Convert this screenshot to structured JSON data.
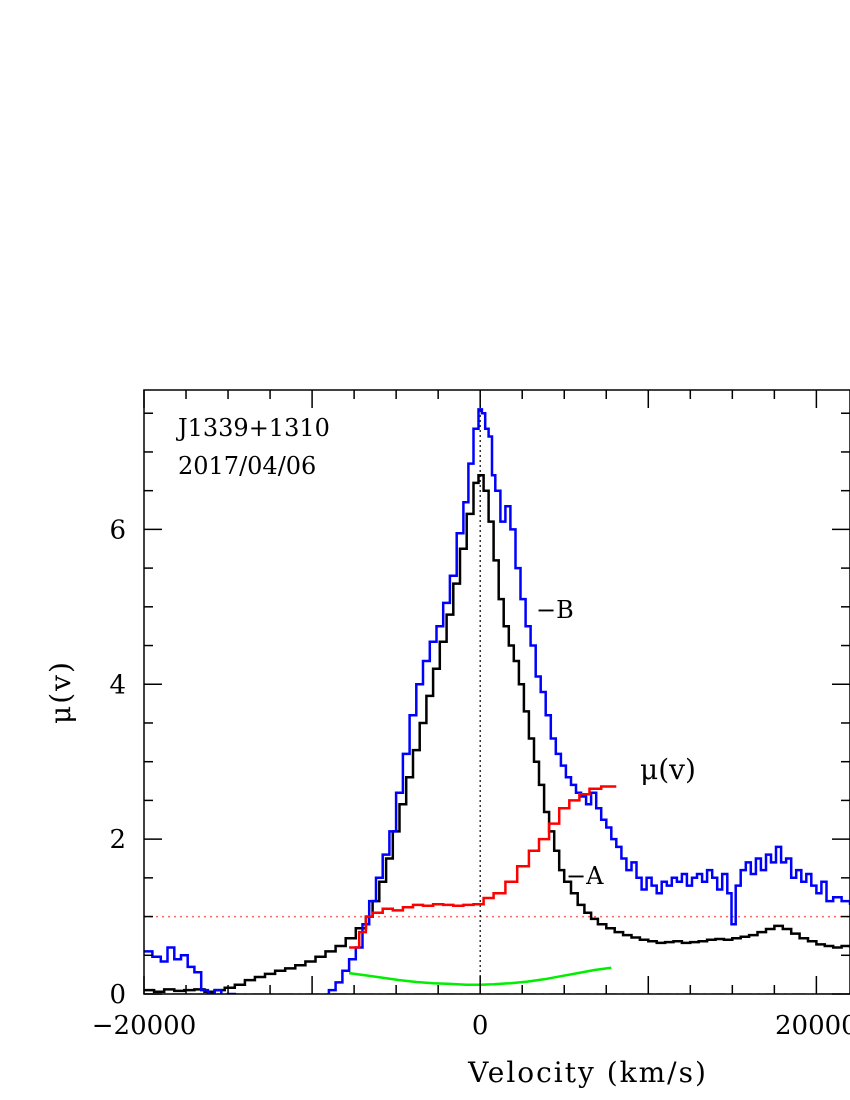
{
  "chart_data": {
    "type": "line",
    "xlabel": "Velocity (km/s)",
    "ylabel": "μ(v)",
    "xlim": [
      -20000,
      22000
    ],
    "ylim": [
      0,
      7.8
    ],
    "x_ticks": [
      -20000,
      0,
      20000
    ],
    "x_tick_labels": [
      "−20000",
      "0",
      "20000"
    ],
    "y_ticks": [
      0,
      2,
      4,
      6
    ],
    "y_tick_labels": [
      "0",
      "2",
      "4",
      "6"
    ],
    "grid": false,
    "annotations": {
      "object": "J1339+1310",
      "date": "2017/04/06",
      "label_B": "−B",
      "label_A": "−A",
      "label_mu": "μ(v)"
    },
    "colors": {
      "B": "#0000ff",
      "A": "#000000",
      "mu": "#ff0000",
      "green": "#00ee00",
      "ref_line": "#ff6666"
    },
    "reference_lines": {
      "y_one": 1,
      "y_zero": 0,
      "x_zero": 0
    },
    "series": [
      {
        "key": "B",
        "step": true,
        "points": [
          [
            -20000,
            0.55
          ],
          [
            -19500,
            0.48
          ],
          [
            -19000,
            0.42
          ],
          [
            -18600,
            0.6
          ],
          [
            -18200,
            0.45
          ],
          [
            -17800,
            0.5
          ],
          [
            -17400,
            0.35
          ],
          [
            -17000,
            0.28
          ],
          [
            -16600,
            0.05
          ],
          [
            -16200,
            0.0
          ],
          [
            -15800,
            0.05
          ],
          [
            -15400,
            -0.05
          ],
          [
            -15000,
            0.0
          ],
          [
            -14600,
            -0.1
          ],
          [
            -9200,
            -0.1
          ],
          [
            -9000,
            0.05
          ],
          [
            -8600,
            0.15
          ],
          [
            -8200,
            0.3
          ],
          [
            -7800,
            0.45
          ],
          [
            -7400,
            0.6
          ],
          [
            -7000,
            0.9
          ],
          [
            -6600,
            1.2
          ],
          [
            -6200,
            1.5
          ],
          [
            -5800,
            1.8
          ],
          [
            -5400,
            2.1
          ],
          [
            -5000,
            2.6
          ],
          [
            -4600,
            3.1
          ],
          [
            -4200,
            3.6
          ],
          [
            -3800,
            4.0
          ],
          [
            -3400,
            4.3
          ],
          [
            -3000,
            4.55
          ],
          [
            -2600,
            4.75
          ],
          [
            -2200,
            5.05
          ],
          [
            -1800,
            5.4
          ],
          [
            -1400,
            5.95
          ],
          [
            -1000,
            6.35
          ],
          [
            -700,
            6.85
          ],
          [
            -400,
            7.3
          ],
          [
            -100,
            7.55
          ],
          [
            100,
            7.5
          ],
          [
            300,
            7.3
          ],
          [
            500,
            7.2
          ],
          [
            700,
            6.7
          ],
          [
            900,
            6.5
          ],
          [
            1200,
            6.1
          ],
          [
            1500,
            6.3
          ],
          [
            1800,
            6.0
          ],
          [
            2100,
            5.5
          ],
          [
            2400,
            5.1
          ],
          [
            2700,
            4.75
          ],
          [
            3000,
            4.5
          ],
          [
            3300,
            4.1
          ],
          [
            3600,
            3.9
          ],
          [
            3900,
            3.6
          ],
          [
            4200,
            3.3
          ],
          [
            4500,
            3.1
          ],
          [
            4800,
            2.95
          ],
          [
            5100,
            2.8
          ],
          [
            5400,
            2.7
          ],
          [
            5700,
            2.6
          ],
          [
            6000,
            2.55
          ],
          [
            6300,
            2.45
          ],
          [
            6600,
            2.6
          ],
          [
            6900,
            2.4
          ],
          [
            7200,
            2.25
          ],
          [
            7500,
            2.15
          ],
          [
            7800,
            2.0
          ],
          [
            8100,
            1.9
          ],
          [
            8400,
            1.75
          ],
          [
            8700,
            1.6
          ],
          [
            9000,
            1.7
          ],
          [
            9300,
            1.5
          ],
          [
            9600,
            1.35
          ],
          [
            9900,
            1.5
          ],
          [
            10200,
            1.4
          ],
          [
            10500,
            1.3
          ],
          [
            10800,
            1.45
          ],
          [
            11100,
            1.4
          ],
          [
            11400,
            1.5
          ],
          [
            11700,
            1.45
          ],
          [
            12000,
            1.55
          ],
          [
            12300,
            1.4
          ],
          [
            12600,
            1.5
          ],
          [
            12900,
            1.55
          ],
          [
            13200,
            1.45
          ],
          [
            13500,
            1.6
          ],
          [
            13800,
            1.5
          ],
          [
            14100,
            1.35
          ],
          [
            14400,
            1.55
          ],
          [
            14700,
            1.3
          ],
          [
            14950,
            0.9
          ],
          [
            15200,
            1.4
          ],
          [
            15500,
            1.6
          ],
          [
            15800,
            1.7
          ],
          [
            16100,
            1.55
          ],
          [
            16400,
            1.75
          ],
          [
            16700,
            1.6
          ],
          [
            17000,
            1.8
          ],
          [
            17300,
            1.7
          ],
          [
            17600,
            1.9
          ],
          [
            17900,
            1.7
          ],
          [
            18200,
            1.75
          ],
          [
            18500,
            1.5
          ],
          [
            18800,
            1.6
          ],
          [
            19100,
            1.45
          ],
          [
            19400,
            1.55
          ],
          [
            19700,
            1.4
          ],
          [
            20000,
            1.3
          ],
          [
            20300,
            1.45
          ],
          [
            20600,
            1.2
          ],
          [
            21000,
            1.25
          ],
          [
            21500,
            1.2
          ],
          [
            22000,
            1.15
          ]
        ]
      },
      {
        "key": "A",
        "step": true,
        "points": [
          [
            -20000,
            0.05
          ],
          [
            -19400,
            0.03
          ],
          [
            -18800,
            0.06
          ],
          [
            -18200,
            0.04
          ],
          [
            -17600,
            0.05
          ],
          [
            -17000,
            0.06
          ],
          [
            -16400,
            0.03
          ],
          [
            -15800,
            0.05
          ],
          [
            -15200,
            0.08
          ],
          [
            -14600,
            0.12
          ],
          [
            -14000,
            0.18
          ],
          [
            -13400,
            0.22
          ],
          [
            -12800,
            0.26
          ],
          [
            -12200,
            0.3
          ],
          [
            -11600,
            0.33
          ],
          [
            -11000,
            0.37
          ],
          [
            -10400,
            0.42
          ],
          [
            -9800,
            0.48
          ],
          [
            -9200,
            0.55
          ],
          [
            -8600,
            0.62
          ],
          [
            -8000,
            0.72
          ],
          [
            -7400,
            0.85
          ],
          [
            -6800,
            1.0
          ],
          [
            -6400,
            1.2
          ],
          [
            -6000,
            1.45
          ],
          [
            -5600,
            1.75
          ],
          [
            -5200,
            2.1
          ],
          [
            -4800,
            2.45
          ],
          [
            -4400,
            2.8
          ],
          [
            -4000,
            3.15
          ],
          [
            -3600,
            3.5
          ],
          [
            -3200,
            3.85
          ],
          [
            -2800,
            4.2
          ],
          [
            -2400,
            4.55
          ],
          [
            -2000,
            4.9
          ],
          [
            -1600,
            5.3
          ],
          [
            -1200,
            5.75
          ],
          [
            -800,
            6.2
          ],
          [
            -400,
            6.6
          ],
          [
            -100,
            6.7
          ],
          [
            200,
            6.5
          ],
          [
            500,
            6.1
          ],
          [
            800,
            5.6
          ],
          [
            1100,
            5.1
          ],
          [
            1400,
            4.75
          ],
          [
            1700,
            4.5
          ],
          [
            2000,
            4.3
          ],
          [
            2300,
            4.0
          ],
          [
            2600,
            3.65
          ],
          [
            2900,
            3.3
          ],
          [
            3200,
            3.0
          ],
          [
            3500,
            2.7
          ],
          [
            3800,
            2.35
          ],
          [
            4100,
            2.1
          ],
          [
            4400,
            1.85
          ],
          [
            4700,
            1.6
          ],
          [
            5000,
            1.45
          ],
          [
            5400,
            1.3
          ],
          [
            5800,
            1.15
          ],
          [
            6200,
            1.05
          ],
          [
            6600,
            0.97
          ],
          [
            7000,
            0.9
          ],
          [
            7500,
            0.85
          ],
          [
            8000,
            0.8
          ],
          [
            8500,
            0.76
          ],
          [
            9000,
            0.73
          ],
          [
            9500,
            0.7
          ],
          [
            10000,
            0.68
          ],
          [
            10500,
            0.66
          ],
          [
            11000,
            0.67
          ],
          [
            11500,
            0.68
          ],
          [
            12000,
            0.66
          ],
          [
            12500,
            0.67
          ],
          [
            13000,
            0.68
          ],
          [
            13500,
            0.7
          ],
          [
            14000,
            0.71
          ],
          [
            14500,
            0.7
          ],
          [
            15000,
            0.72
          ],
          [
            15500,
            0.74
          ],
          [
            16000,
            0.76
          ],
          [
            16500,
            0.8
          ],
          [
            17000,
            0.84
          ],
          [
            17500,
            0.88
          ],
          [
            18000,
            0.84
          ],
          [
            18500,
            0.78
          ],
          [
            19000,
            0.72
          ],
          [
            19500,
            0.68
          ],
          [
            20000,
            0.64
          ],
          [
            20500,
            0.62
          ],
          [
            21000,
            0.6
          ],
          [
            21500,
            0.62
          ],
          [
            22000,
            0.6
          ]
        ]
      },
      {
        "key": "mu",
        "step": true,
        "points": [
          [
            -7800,
            0.6
          ],
          [
            -7200,
            0.8
          ],
          [
            -6800,
            1.0
          ],
          [
            -6400,
            1.05
          ],
          [
            -5800,
            1.1
          ],
          [
            -5200,
            1.08
          ],
          [
            -4600,
            1.12
          ],
          [
            -4000,
            1.15
          ],
          [
            -3400,
            1.14
          ],
          [
            -2800,
            1.16
          ],
          [
            -2200,
            1.15
          ],
          [
            -1600,
            1.14
          ],
          [
            -1000,
            1.15
          ],
          [
            -400,
            1.16
          ],
          [
            200,
            1.24
          ],
          [
            800,
            1.3
          ],
          [
            1500,
            1.45
          ],
          [
            2200,
            1.65
          ],
          [
            2900,
            1.85
          ],
          [
            3500,
            2.0
          ],
          [
            4100,
            2.2
          ],
          [
            4700,
            2.4
          ],
          [
            5300,
            2.5
          ],
          [
            5900,
            2.58
          ],
          [
            6500,
            2.65
          ],
          [
            7200,
            2.68
          ],
          [
            7800,
            2.68
          ]
        ]
      },
      {
        "key": "green",
        "step": false,
        "points": [
          [
            -7800,
            0.27
          ],
          [
            -6800,
            0.24
          ],
          [
            -5800,
            0.21
          ],
          [
            -4800,
            0.18
          ],
          [
            -3800,
            0.155
          ],
          [
            -2800,
            0.14
          ],
          [
            -1800,
            0.13
          ],
          [
            -800,
            0.12
          ],
          [
            0,
            0.12
          ],
          [
            800,
            0.125
          ],
          [
            1800,
            0.14
          ],
          [
            2800,
            0.16
          ],
          [
            3800,
            0.19
          ],
          [
            4800,
            0.23
          ],
          [
            5800,
            0.27
          ],
          [
            6800,
            0.31
          ],
          [
            7800,
            0.34
          ]
        ]
      }
    ]
  }
}
